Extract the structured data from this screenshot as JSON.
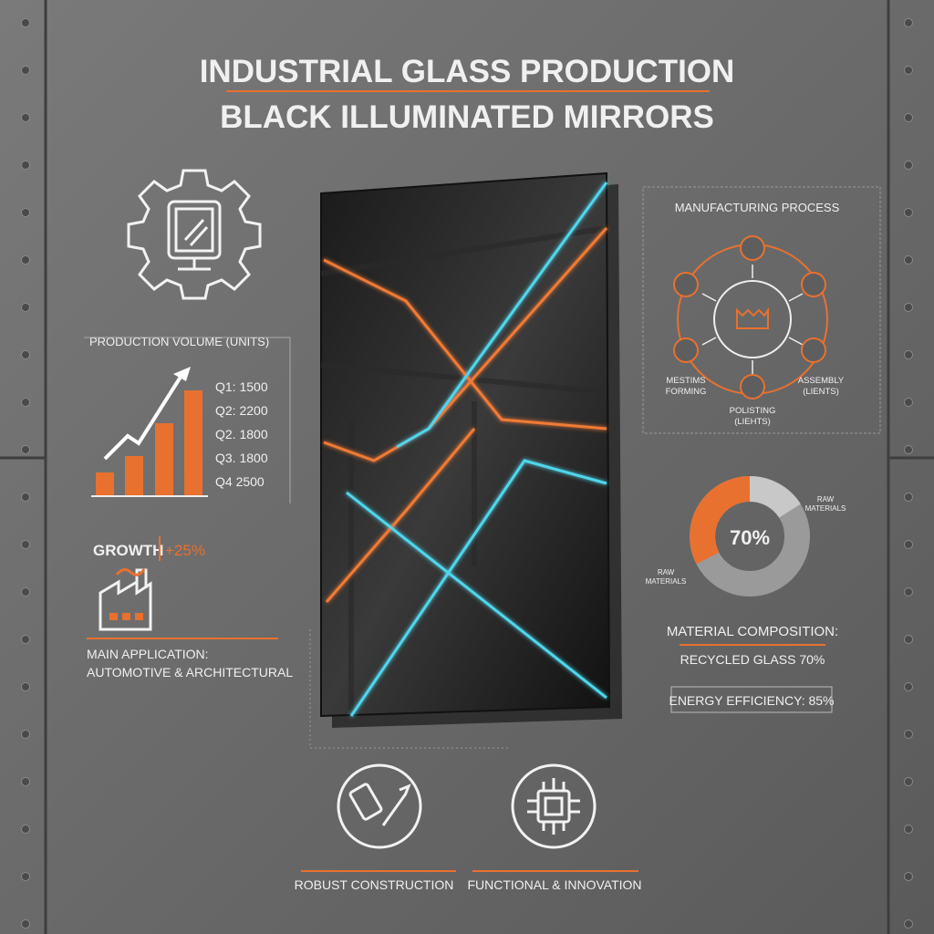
{
  "header": {
    "title": "INDUSTRIAL GLASS PRODUCTION",
    "subtitle": "BLACK ILLUMINATED MIRRORS"
  },
  "production": {
    "title": "PRODUCTION VOLUME (UNITS)",
    "quarters": [
      "Q1: 1500",
      "Q2: 2200",
      "Q2. 1800",
      "Q3. 1800",
      "Q4 2500"
    ]
  },
  "growth": {
    "label": "GROWTH",
    "value": "+25%"
  },
  "application": {
    "label": "MAIN APPLICATION:",
    "value": "AUTOMOTIVE & ARCHITECTURAL"
  },
  "process": {
    "title": "MANUFACTURING PROCESS",
    "steps": [
      {
        "lines": [
          "MESTIMS",
          "FORMING"
        ]
      },
      {
        "lines": [
          "POLISTING",
          "(LIEHTS)"
        ]
      },
      {
        "lines": [
          "ASSEMBLY",
          "(LIENTS)"
        ]
      }
    ]
  },
  "composition": {
    "center": "70%",
    "labels": [
      {
        "lines": [
          "RAW",
          "MATERIALS"
        ]
      },
      {
        "lines": [
          "RAW",
          "MATERIALS"
        ]
      }
    ],
    "title": "MATERIAL COMPOSITION:",
    "recycled": "RECYCLED GLASS 70%",
    "energy": "ENERGY EFFICIENCY: 85%"
  },
  "features": [
    "ROBUST CONSTRUCTION",
    "FUNCTIONAL & INNOVATION"
  ]
}
